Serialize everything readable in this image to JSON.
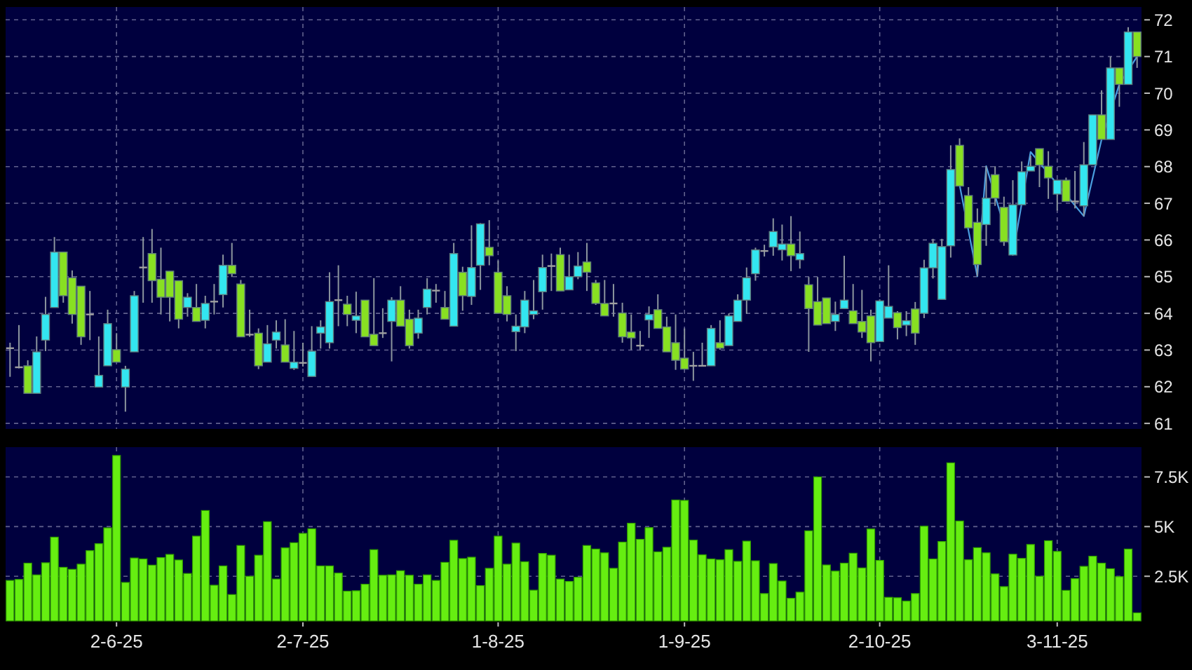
{
  "chart_data": [
    {
      "type": "candlestick",
      "categories": [
        null,
        null,
        null,
        null,
        null,
        null,
        null,
        null,
        null,
        null,
        null,
        null,
        null,
        null,
        null,
        null,
        null,
        null,
        null,
        null,
        null,
        null,
        null,
        null,
        null,
        null,
        null,
        null,
        null,
        null,
        null,
        null,
        null,
        null,
        null,
        null,
        null,
        null,
        null,
        null,
        null,
        null,
        null,
        null,
        null,
        null,
        null,
        null,
        null,
        null,
        null,
        null,
        null,
        null,
        null,
        null,
        null,
        null,
        null,
        null,
        null,
        null,
        null,
        null,
        null,
        null,
        null,
        null,
        null,
        null,
        null,
        null,
        null,
        null,
        null,
        null,
        null,
        null,
        null,
        null,
        null,
        null,
        null,
        null,
        null,
        null,
        null,
        null,
        null,
        null,
        null,
        null,
        null,
        null,
        null,
        null,
        null,
        null,
        null,
        null,
        null,
        null,
        null,
        null,
        null,
        null,
        null,
        null,
        null,
        null,
        null,
        null,
        null,
        null,
        null,
        null,
        null,
        null,
        null,
        null,
        null,
        null,
        null,
        null,
        null,
        null,
        null,
        null
      ],
      "ohlc": [
        [
          63.05,
          63.2,
          62.27,
          63.05
        ],
        [
          62.53,
          63.68,
          62.5,
          62.53
        ],
        [
          62.57,
          62.72,
          61.82,
          61.82
        ],
        [
          61.82,
          63.37,
          61.82,
          62.95
        ],
        [
          63.27,
          64.45,
          62.97,
          63.97
        ],
        [
          64.16,
          66.08,
          64.16,
          65.67
        ],
        [
          65.67,
          65.67,
          64.29,
          64.48
        ],
        [
          64.97,
          65.17,
          63.72,
          63.97
        ],
        [
          64.74,
          64.74,
          63.14,
          63.36
        ],
        [
          63.97,
          64.61,
          63.27,
          63.97
        ],
        [
          61.99,
          63.37,
          61.99,
          62.31
        ],
        [
          62.57,
          64.1,
          62.57,
          63.72
        ],
        [
          63.01,
          63.46,
          62.67,
          62.67
        ],
        [
          61.99,
          62.57,
          61.32,
          62.48
        ],
        [
          62.95,
          64.61,
          62.95,
          64.48
        ],
        [
          65.25,
          66.08,
          64.29,
          65.25
        ],
        [
          65.63,
          66.3,
          64.29,
          64.89
        ],
        [
          64.93,
          65.79,
          63.97,
          64.44
        ],
        [
          65.15,
          65.15,
          63.78,
          64.44
        ],
        [
          64.89,
          64.89,
          63.59,
          63.84
        ],
        [
          64.16,
          64.55,
          63.91,
          64.44
        ],
        [
          64.16,
          64.8,
          63.78,
          63.78
        ],
        [
          63.81,
          64.48,
          63.59,
          64.27
        ],
        [
          64.32,
          64.8,
          63.97,
          64.32
        ],
        [
          64.51,
          65.6,
          64.16,
          65.31
        ],
        [
          65.31,
          65.92,
          64.99,
          65.08
        ],
        [
          64.8,
          64.91,
          63.36,
          63.36
        ],
        [
          63.42,
          64.1,
          63.36,
          63.42
        ],
        [
          63.46,
          63.59,
          62.48,
          62.57
        ],
        [
          62.67,
          63.68,
          62.67,
          63.17
        ],
        [
          63.27,
          63.81,
          63.04,
          63.49
        ],
        [
          63.14,
          63.84,
          62.67,
          62.67
        ],
        [
          62.5,
          63.52,
          62.46,
          62.67
        ],
        [
          62.65,
          63.2,
          62.55,
          62.65
        ],
        [
          62.28,
          63.65,
          62.28,
          62.97
        ],
        [
          63.46,
          63.81,
          63.04,
          63.63
        ],
        [
          63.2,
          65.12,
          63.04,
          64.32
        ],
        [
          64.36,
          65.31,
          63.65,
          64.36
        ],
        [
          64.25,
          64.48,
          63.65,
          63.97
        ],
        [
          63.81,
          64.59,
          63.46,
          63.93
        ],
        [
          64.36,
          64.36,
          63.36,
          63.36
        ],
        [
          63.43,
          64.96,
          63.12,
          63.12
        ],
        [
          63.46,
          64.14,
          63.33,
          63.46
        ],
        [
          63.78,
          64.44,
          62.69,
          64.36
        ],
        [
          64.36,
          64.74,
          63.65,
          63.65
        ],
        [
          63.84,
          64.1,
          63.04,
          63.12
        ],
        [
          63.46,
          64.1,
          63.31,
          63.87
        ],
        [
          64.16,
          64.96,
          63.97,
          64.66
        ],
        [
          64.62,
          64.8,
          64.29,
          64.62
        ],
        [
          64.16,
          64.61,
          63.84,
          63.84
        ],
        [
          63.65,
          65.92,
          63.65,
          65.63
        ],
        [
          65.12,
          65.27,
          64.07,
          64.48
        ],
        [
          64.46,
          66.4,
          64.23,
          65.25
        ],
        [
          65.31,
          66.46,
          64.64,
          66.44
        ],
        [
          65.8,
          66.54,
          65.31,
          65.57
        ],
        [
          65.12,
          65.44,
          64.0,
          64.0
        ],
        [
          64.48,
          64.74,
          63.78,
          63.97
        ],
        [
          63.5,
          63.97,
          62.97,
          63.65
        ],
        [
          63.63,
          64.61,
          63.46,
          64.36
        ],
        [
          63.97,
          64.91,
          63.84,
          64.07
        ],
        [
          64.59,
          65.6,
          64.1,
          65.25
        ],
        [
          65.29,
          65.63,
          64.61,
          65.29
        ],
        [
          65.6,
          65.79,
          64.61,
          64.61
        ],
        [
          64.64,
          65.6,
          64.64,
          65.0
        ],
        [
          65.0,
          65.67,
          64.93,
          65.29
        ],
        [
          65.4,
          65.92,
          64.61,
          65.12
        ],
        [
          64.83,
          64.91,
          64.23,
          64.27
        ],
        [
          64.27,
          64.91,
          63.93,
          63.93
        ],
        [
          64.27,
          64.8,
          63.91,
          64.27
        ],
        [
          64.01,
          64.29,
          63.2,
          63.36
        ],
        [
          63.49,
          63.97,
          63.01,
          63.33
        ],
        [
          63.12,
          63.52,
          63.01,
          63.12
        ],
        [
          63.82,
          64.19,
          63.33,
          63.97
        ],
        [
          64.1,
          64.52,
          63.59,
          63.59
        ],
        [
          63.63,
          63.91,
          62.95,
          62.95
        ],
        [
          63.2,
          63.97,
          62.46,
          62.72
        ],
        [
          62.78,
          63.59,
          62.48,
          62.48
        ],
        [
          62.57,
          62.95,
          62.16,
          62.57
        ],
        [
          62.57,
          63.2,
          62.57,
          62.57
        ],
        [
          62.57,
          63.68,
          62.57,
          63.59
        ],
        [
          63.2,
          63.81,
          63.01,
          63.05
        ],
        [
          63.12,
          64.0,
          63.12,
          63.93
        ],
        [
          63.78,
          64.52,
          63.78,
          64.36
        ],
        [
          64.36,
          65.25,
          63.99,
          64.97
        ],
        [
          65.08,
          65.79,
          64.89,
          65.73
        ],
        [
          65.7,
          65.87,
          65.55,
          65.7
        ],
        [
          65.81,
          66.59,
          65.57,
          66.23
        ],
        [
          65.73,
          66.42,
          65.44,
          65.89
        ],
        [
          65.89,
          66.65,
          65.15,
          65.57
        ],
        [
          65.46,
          66.23,
          65.22,
          65.63
        ],
        [
          64.78,
          64.99,
          62.95,
          64.13
        ],
        [
          64.32,
          64.99,
          63.68,
          63.68
        ],
        [
          64.42,
          64.42,
          63.72,
          63.72
        ],
        [
          63.78,
          64.32,
          63.52,
          63.97
        ],
        [
          64.13,
          65.57,
          64.13,
          64.36
        ],
        [
          64.07,
          64.8,
          63.72,
          63.72
        ],
        [
          63.78,
          64.64,
          63.33,
          63.49
        ],
        [
          63.93,
          64.1,
          62.69,
          63.2
        ],
        [
          63.23,
          64.38,
          63.23,
          64.34
        ],
        [
          63.87,
          65.31,
          63.87,
          64.19
        ],
        [
          64.02,
          64.06,
          63.29,
          63.61
        ],
        [
          63.68,
          64.06,
          63.38,
          63.8
        ],
        [
          64.12,
          64.31,
          63.14,
          63.46
        ],
        [
          64.0,
          65.46,
          63.87,
          65.24
        ],
        [
          65.24,
          66.03,
          64.95,
          65.91
        ],
        [
          64.38,
          66.03,
          64.38,
          65.82
        ],
        [
          65.84,
          68.58,
          65.52,
          67.92
        ],
        [
          68.58,
          68.77,
          67.47,
          67.47
        ],
        [
          67.21,
          67.44,
          66.33,
          66.33
        ],
        [
          66.48,
          66.86,
          65.01,
          65.33
        ],
        [
          66.42,
          68.01,
          65.84,
          67.14
        ],
        [
          67.78,
          68.01,
          66.93,
          67.14
        ],
        [
          66.89,
          67.18,
          65.84,
          65.95
        ],
        [
          65.59,
          67.63,
          65.59,
          66.96
        ],
        [
          66.96,
          68.14,
          66.96,
          67.86
        ],
        [
          67.88,
          68.3,
          67.88,
          68.01
        ],
        [
          68.49,
          68.49,
          67.44,
          68.04
        ],
        [
          68.01,
          68.42,
          67.12,
          67.69
        ],
        [
          67.25,
          67.63,
          66.8,
          67.63
        ],
        [
          67.63,
          67.7,
          67.05,
          67.05
        ],
        [
          67.05,
          67.88,
          66.86,
          67.05
        ],
        [
          66.93,
          68.67,
          66.65,
          68.05
        ],
        [
          68.05,
          69.41,
          68.05,
          69.41
        ],
        [
          69.41,
          70.08,
          68.74,
          68.74
        ],
        [
          68.74,
          71.0,
          68.74,
          70.69
        ],
        [
          70.69,
          70.69,
          69.63,
          70.24
        ],
        [
          70.24,
          71.8,
          70.24,
          71.67
        ],
        [
          71.67,
          71.67,
          70.69,
          71.0
        ]
      ],
      "colors": [
        "#a0a0a0",
        "#a0a0a0",
        "#88e022",
        "#33e6f0",
        "#33e6f0",
        "#33e6f0",
        "#88e022",
        "#88e022",
        "#88e022",
        "#a0a0a0",
        "#33e6f0",
        "#33e6f0",
        "#88e022",
        "#33e6f0",
        "#33e6f0",
        "#a0a0a0",
        "#88e022",
        "#88e022",
        "#88e022",
        "#88e022",
        "#33e6f0",
        "#88e022",
        "#33e6f0",
        "#a0a0a0",
        "#33e6f0",
        "#88e022",
        "#88e022",
        "#a0a0a0",
        "#88e022",
        "#33e6f0",
        "#33e6f0",
        "#88e022",
        "#33e6f0",
        "#a0a0a0",
        "#33e6f0",
        "#33e6f0",
        "#33e6f0",
        "#a0a0a0",
        "#88e022",
        "#33e6f0",
        "#88e022",
        "#88e022",
        "#a0a0a0",
        "#33e6f0",
        "#88e022",
        "#88e022",
        "#33e6f0",
        "#33e6f0",
        "#a0a0a0",
        "#88e022",
        "#33e6f0",
        "#88e022",
        "#33e6f0",
        "#33e6f0",
        "#88e022",
        "#88e022",
        "#88e022",
        "#33e6f0",
        "#33e6f0",
        "#33e6f0",
        "#33e6f0",
        "#a0a0a0",
        "#88e022",
        "#33e6f0",
        "#33e6f0",
        "#88e022",
        "#88e022",
        "#88e022",
        "#a0a0a0",
        "#88e022",
        "#88e022",
        "#a0a0a0",
        "#33e6f0",
        "#88e022",
        "#88e022",
        "#88e022",
        "#88e022",
        "#a0a0a0",
        "#a0a0a0",
        "#33e6f0",
        "#88e022",
        "#33e6f0",
        "#33e6f0",
        "#33e6f0",
        "#33e6f0",
        "#a0a0a0",
        "#33e6f0",
        "#33e6f0",
        "#88e022",
        "#33e6f0",
        "#88e022",
        "#88e022",
        "#88e022",
        "#33e6f0",
        "#33e6f0",
        "#88e022",
        "#88e022",
        "#88e022",
        "#33e6f0",
        "#33e6f0",
        "#88e022",
        "#33e6f0",
        "#88e022",
        "#33e6f0",
        "#33e6f0",
        "#33e6f0",
        "#33e6f0",
        "#88e022",
        "#88e022",
        "#88e022",
        "#33e6f0",
        "#88e022",
        "#88e022",
        "#33e6f0",
        "#33e6f0",
        "#33e6f0",
        "#88e022",
        "#88e022",
        "#33e6f0",
        "#88e022",
        "#a0a0a0",
        "#33e6f0",
        "#33e6f0",
        "#88e022",
        "#33e6f0",
        "#88e022",
        "#33e6f0",
        "#88e022"
      ],
      "series": [
        {
          "type": "line",
          "color": "#4a9fe0",
          "values": [
            null,
            null,
            null,
            null,
            null,
            null,
            null,
            null,
            null,
            null,
            null,
            null,
            null,
            null,
            null,
            null,
            null,
            null,
            null,
            null,
            null,
            null,
            null,
            null,
            null,
            null,
            null,
            null,
            null,
            null,
            null,
            null,
            null,
            null,
            null,
            null,
            null,
            null,
            null,
            null,
            null,
            null,
            null,
            null,
            null,
            null,
            null,
            null,
            null,
            null,
            null,
            null,
            null,
            null,
            null,
            null,
            null,
            null,
            null,
            null,
            null,
            null,
            null,
            null,
            null,
            null,
            null,
            null,
            null,
            null,
            null,
            null,
            null,
            null,
            null,
            null,
            null,
            null,
            null,
            null,
            null,
            null,
            null,
            null,
            null,
            null,
            null,
            null,
            null,
            null,
            null,
            null,
            null,
            null,
            null,
            null,
            null,
            null,
            null,
            null,
            null,
            null,
            null,
            null,
            null,
            null,
            null,
            67.5,
            null,
            65.01,
            68.01,
            null,
            null,
            65.59,
            null,
            68.4,
            null,
            null,
            null,
            null,
            null,
            66.65,
            null,
            68.74,
            null,
            70.24,
            null,
            71.0
          ]
        }
      ],
      "ylim": [
        60.85,
        72.35
      ],
      "yticks": [
        61,
        62,
        63,
        64,
        65,
        66,
        67,
        68,
        69,
        70,
        71,
        72
      ],
      "grid": true,
      "tick_labels": "y"
    },
    {
      "type": "bar",
      "categories": [
        null,
        null,
        null,
        null,
        null,
        null,
        null,
        null,
        null,
        null,
        null,
        null,
        "2-6-25",
        null,
        null,
        null,
        null,
        null,
        null,
        null,
        null,
        null,
        null,
        null,
        null,
        null,
        null,
        null,
        null,
        null,
        null,
        null,
        null,
        "2-7-25",
        null,
        null,
        null,
        null,
        null,
        null,
        null,
        null,
        null,
        null,
        null,
        null,
        null,
        null,
        null,
        null,
        null,
        null,
        null,
        null,
        null,
        "1-8-25",
        null,
        null,
        null,
        null,
        null,
        null,
        null,
        null,
        null,
        null,
        null,
        null,
        null,
        null,
        null,
        null,
        null,
        null,
        null,
        null,
        "1-9-25",
        null,
        null,
        null,
        null,
        null,
        null,
        null,
        null,
        null,
        null,
        null,
        null,
        null,
        null,
        null,
        null,
        null,
        null,
        null,
        null,
        null,
        "2-10-25",
        null,
        null,
        null,
        null,
        null,
        null,
        null,
        null,
        null,
        null,
        null,
        null,
        null,
        null,
        null,
        null,
        null,
        null,
        null,
        "3-11-25",
        null,
        null,
        null,
        null,
        null,
        null,
        null,
        null,
        null
      ],
      "values": [
        2290,
        2340,
        3160,
        2570,
        3180,
        4470,
        2950,
        2850,
        3110,
        3790,
        4140,
        4940,
        8580,
        2190,
        3420,
        3370,
        3060,
        3440,
        3600,
        3320,
        2640,
        4520,
        5810,
        2050,
        3020,
        1580,
        4050,
        2500,
        3560,
        5250,
        2360,
        3930,
        4190,
        4660,
        4890,
        3020,
        3020,
        2660,
        1750,
        1770,
        2100,
        3840,
        2550,
        2570,
        2780,
        2550,
        2100,
        2570,
        2290,
        3200,
        4310,
        3390,
        3460,
        2030,
        2900,
        4520,
        3110,
        4170,
        3230,
        1800,
        3650,
        3560,
        2360,
        2240,
        2450,
        4050,
        3870,
        3680,
        2900,
        4220,
        5170,
        4360,
        4950,
        3730,
        3960,
        6340,
        6320,
        4320,
        3580,
        3370,
        3330,
        3840,
        3250,
        4270,
        3280,
        1630,
        3140,
        2260,
        1390,
        1700,
        4790,
        7500,
        3070,
        2760,
        3160,
        3660,
        2920,
        4880,
        3300,
        1440,
        1420,
        1250,
        1630,
        5020,
        3370,
        4250,
        8210,
        5280,
        3330,
        3940,
        3680,
        2620,
        1980,
        3610,
        3400,
        4100,
        2500,
        4290,
        3750,
        1790,
        2380,
        3000,
        3510,
        3160,
        2880,
        2480,
        3870,
        660
      ],
      "color": "#66ee11",
      "ylim": [
        250,
        9000
      ],
      "yticks": [
        {
          "value": 2500,
          "label": "2.5K"
        },
        {
          "value": 5000,
          "label": "5K"
        },
        {
          "value": 7500,
          "label": "7.5K"
        }
      ],
      "grid": true
    }
  ]
}
